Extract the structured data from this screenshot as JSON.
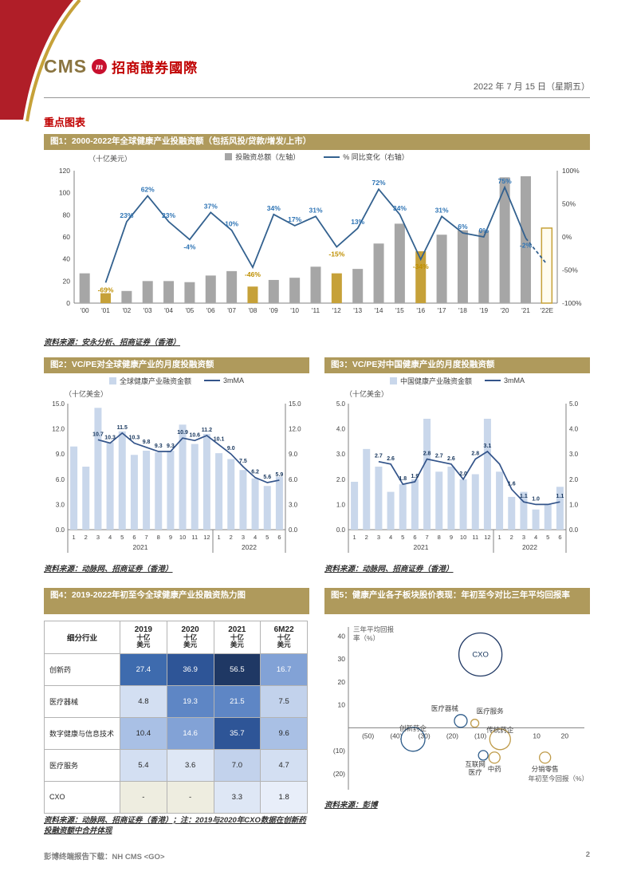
{
  "page": {
    "logo": {
      "cms": "CMS",
      "mark": "m",
      "brand": "招商證券國際"
    },
    "date": "2022 年 7 月 15 日（星期五）",
    "section_title": "重点图表",
    "footer_left": "彭博终端报告下载：NH CMS <GO>",
    "page_number": "2"
  },
  "chart_data": [
    {
      "id": "fig1",
      "type": "bar+line",
      "title": "图1：2000-2022年全球健康产业投融资额（包括风投/贷款/增发/上市）",
      "unit": "（十亿美元）",
      "legend": [
        "投融资总额（左轴）",
        "% 同比变化（右轴）"
      ],
      "categories": [
        "'00",
        "'01",
        "'02",
        "'03",
        "'04",
        "'05",
        "'06",
        "'07",
        "'08",
        "'09",
        "'10",
        "'11",
        "'12",
        "'13",
        "'14",
        "'15",
        "'16",
        "'17",
        "'18",
        "'19",
        "'20",
        "'21",
        "'22E"
      ],
      "bars": [
        27,
        9,
        11,
        20,
        20,
        19,
        25,
        29,
        15,
        21,
        23,
        33,
        27,
        31,
        54,
        72,
        47,
        62,
        66,
        66,
        114,
        115,
        68
      ],
      "highlight_years": [
        "'01",
        "'08",
        "'12",
        "'16",
        "'22E"
      ],
      "estimate_year": "'22E",
      "yoy_values": [
        null,
        -69,
        23,
        62,
        23,
        -4,
        37,
        10,
        -46,
        34,
        17,
        31,
        -15,
        13,
        72,
        34,
        -34,
        31,
        6,
        0,
        75,
        -2,
        -41
      ],
      "yoy_labels": [
        "",
        "-69%",
        "23%",
        "62%",
        "23%",
        "-4%",
        "37%",
        "10%",
        "-46%",
        "34%",
        "17%",
        "31%",
        "-15%",
        "13%",
        "72%",
        "34%",
        "-34%",
        "31%",
        "6%",
        "0%",
        "75%",
        "-2%",
        ""
      ],
      "ylim_left": [
        0,
        120
      ],
      "yticks_left": [
        0,
        20,
        40,
        60,
        80,
        100,
        120
      ],
      "ylim_right": [
        -100,
        100
      ],
      "yticks_right": [
        {
          "v": 100,
          "label": "100%"
        },
        {
          "v": 50,
          "label": "50%"
        },
        {
          "v": 0,
          "label": "0%"
        },
        {
          "v": -50,
          "label": "-50%"
        },
        {
          "v": -100,
          "label": "-100%"
        }
      ],
      "colors": {
        "bar": "#A6A6A6",
        "bar_highlight": "#C6A139",
        "line": "#33618F",
        "label_pos": "#2E74B5",
        "label_neg": "#BF8F00"
      },
      "source": "资料来源：安永分析、招商证券（香港）"
    },
    {
      "id": "fig2",
      "type": "bar+line",
      "title": "图2：VC/PE对全球健康产业的月度投融资额",
      "unit": "（十亿美金）",
      "legend": [
        "全球健康产业融资金额",
        "3mMA"
      ],
      "months": [
        "1",
        "2",
        "3",
        "4",
        "5",
        "6",
        "7",
        "8",
        "9",
        "10",
        "11",
        "12",
        "1",
        "2",
        "3",
        "4",
        "5",
        "6"
      ],
      "year_groups": [
        {
          "label": "2021",
          "span": 12
        },
        {
          "label": "2022",
          "span": 6
        }
      ],
      "bars": [
        9.9,
        7.5,
        14.5,
        10.4,
        11.7,
        8.9,
        9.4,
        9.2,
        9.4,
        12.5,
        10.2,
        11.4,
        9.1,
        8.4,
        7.1,
        6.1,
        5.2,
        6.3
      ],
      "ma": [
        null,
        null,
        10.7,
        10.3,
        11.5,
        10.3,
        9.8,
        9.3,
        9.3,
        10.9,
        10.6,
        11.2,
        10.1,
        9.0,
        7.5,
        6.2,
        5.6,
        5.9
      ],
      "ma_labels": [
        "",
        "",
        "10.7",
        "10.3",
        "11.5",
        "10.3",
        "9.8",
        "9.3",
        "9.3",
        "10.9",
        "10.6",
        "11.2",
        "10.1",
        "9.0",
        "7.5",
        "6.2",
        "5.6",
        "5.9"
      ],
      "ylim": [
        0,
        15
      ],
      "yticks": [
        0,
        3,
        6,
        9,
        12,
        15
      ],
      "colors": {
        "bar": "#C9D7EB",
        "line": "#33548A"
      },
      "source": "资料来源：动脉网、招商证券（香港）"
    },
    {
      "id": "fig3",
      "type": "bar+line",
      "title": "图3：VC/PE对中国健康产业的月度投融资额",
      "unit": "（十亿美金）",
      "legend": [
        "中国健康产业融资金额",
        "3mMA"
      ],
      "months": [
        "1",
        "2",
        "3",
        "4",
        "5",
        "6",
        "7",
        "8",
        "9",
        "10",
        "11",
        "12",
        "1",
        "2",
        "3",
        "4",
        "5",
        "6"
      ],
      "year_groups": [
        {
          "label": "2021",
          "span": 12
        },
        {
          "label": "2022",
          "span": 6
        }
      ],
      "bars": [
        1.9,
        3.2,
        2.5,
        1.5,
        1.8,
        2.0,
        4.4,
        2.3,
        2.5,
        2.0,
        2.2,
        4.4,
        2.3,
        1.3,
        1.5,
        0.8,
        1.0,
        1.7
      ],
      "ma": [
        null,
        null,
        2.7,
        2.6,
        1.8,
        1.9,
        2.8,
        2.7,
        2.6,
        2.0,
        2.8,
        3.1,
        2.6,
        1.6,
        1.1,
        1.0,
        1.0,
        1.1
      ],
      "ma_labels": [
        "",
        "",
        "2.7",
        "2.6",
        "1.8",
        "1.9",
        "2.8",
        "2.7",
        "2.6",
        "2.0",
        "2.8",
        "3.1",
        "",
        "1.6",
        "1.1",
        "1.0",
        "",
        "1.1"
      ],
      "ylim": [
        0,
        5
      ],
      "yticks": [
        0,
        1,
        2,
        3,
        4,
        5
      ],
      "colors": {
        "bar": "#C9D7EB",
        "line": "#33548A"
      },
      "source": "资料来源：动脉网、招商证券（香港）"
    },
    {
      "id": "fig4",
      "type": "heatmap-table",
      "title": "图4：2019-2022年初至今全球健康产业投融资热力图",
      "col_header_first": "细分行业",
      "columns": [
        {
          "year": "2019",
          "unit_line1": "十亿",
          "unit_line2": "美元"
        },
        {
          "year": "2020",
          "unit_line1": "十亿",
          "unit_line2": "美元"
        },
        {
          "year": "2021",
          "unit_line1": "十亿",
          "unit_line2": "美元"
        },
        {
          "year": "6M22",
          "unit_line1": "十亿",
          "unit_line2": "美元"
        }
      ],
      "rows": [
        {
          "label": "创新药",
          "values": [
            "27.4",
            "36.9",
            "56.5",
            "16.7"
          ]
        },
        {
          "label": "医疗器械",
          "values": [
            "4.8",
            "19.3",
            "21.5",
            "7.5"
          ]
        },
        {
          "label": "数字健康与信息技术",
          "values": [
            "10.4",
            "14.6",
            "35.7",
            "9.6"
          ]
        },
        {
          "label": "医疗服务",
          "values": [
            "5.4",
            "3.6",
            "7.0",
            "4.7"
          ]
        },
        {
          "label": "CXO",
          "values": [
            "-",
            "-",
            "3.3",
            "1.8"
          ]
        }
      ],
      "colors": {
        "scale_min": "#E8EEF9",
        "scale_max": "#1F3864",
        "dash_cell": "#EEEDE0"
      },
      "source": "资料来源：动脉网、招商证券（香港）；注：2019与2020年CXO数据在创新药投融资额中合并体现"
    },
    {
      "id": "fig5",
      "type": "bubble",
      "title": "图5：健康产业各子板块股价表现：年初至今对比三年平均回报率",
      "ylabel": "三年平均回报率（%）",
      "xlabel": "年初至今回报（%）",
      "xlim": [
        -57,
        27
      ],
      "ylim": [
        -27,
        44
      ],
      "xticks": [
        {
          "v": -50,
          "label": "(50)"
        },
        {
          "v": -40,
          "label": "(40)"
        },
        {
          "v": -30,
          "label": "(30)"
        },
        {
          "v": -20,
          "label": "(20)"
        },
        {
          "v": -10,
          "label": "(10)"
        },
        {
          "v": 10,
          "label": "10"
        },
        {
          "v": 20,
          "label": "20"
        }
      ],
      "yticks": [
        {
          "v": 40,
          "label": "40"
        },
        {
          "v": 30,
          "label": "30"
        },
        {
          "v": 20,
          "label": "20"
        },
        {
          "v": 10,
          "label": "10"
        },
        {
          "v": -10,
          "label": "(10)"
        },
        {
          "v": -20,
          "label": "(20)"
        }
      ],
      "bubbles": [
        {
          "label": "CXO",
          "x": -10,
          "y": 32,
          "r": 27,
          "color": "#1F3864",
          "label_pos": "inside"
        },
        {
          "label": "医疗器械",
          "x": -17,
          "y": 3,
          "r": 8,
          "color": "#2E5C8A",
          "label_pos": "above-left"
        },
        {
          "label": "医疗服务",
          "x": -12,
          "y": 2,
          "r": 5,
          "color": "#BF9B4A",
          "label_pos": "above-right"
        },
        {
          "label": "创新药企",
          "x": -34,
          "y": -5,
          "r": 15,
          "color": "#2E5C8A",
          "label_pos": "top"
        },
        {
          "label": "传统药企",
          "x": -3,
          "y": -5,
          "r": 13,
          "color": "#BF9B4A",
          "label_pos": "top"
        },
        {
          "label": "互联网医疗",
          "label_lines": [
            "互联网",
            "医疗"
          ],
          "x": -9,
          "y": -12,
          "r": 6,
          "color": "#2E5C8A",
          "label_pos": "below-left"
        },
        {
          "label": "中药",
          "x": -5,
          "y": -13,
          "r": 7,
          "color": "#BF9B4A",
          "label_pos": "below"
        },
        {
          "label": "分销零售",
          "x": 13,
          "y": -13,
          "r": 7,
          "color": "#BF9B4A",
          "label_pos": "below"
        }
      ],
      "source": "资料来源：彭博"
    }
  ]
}
